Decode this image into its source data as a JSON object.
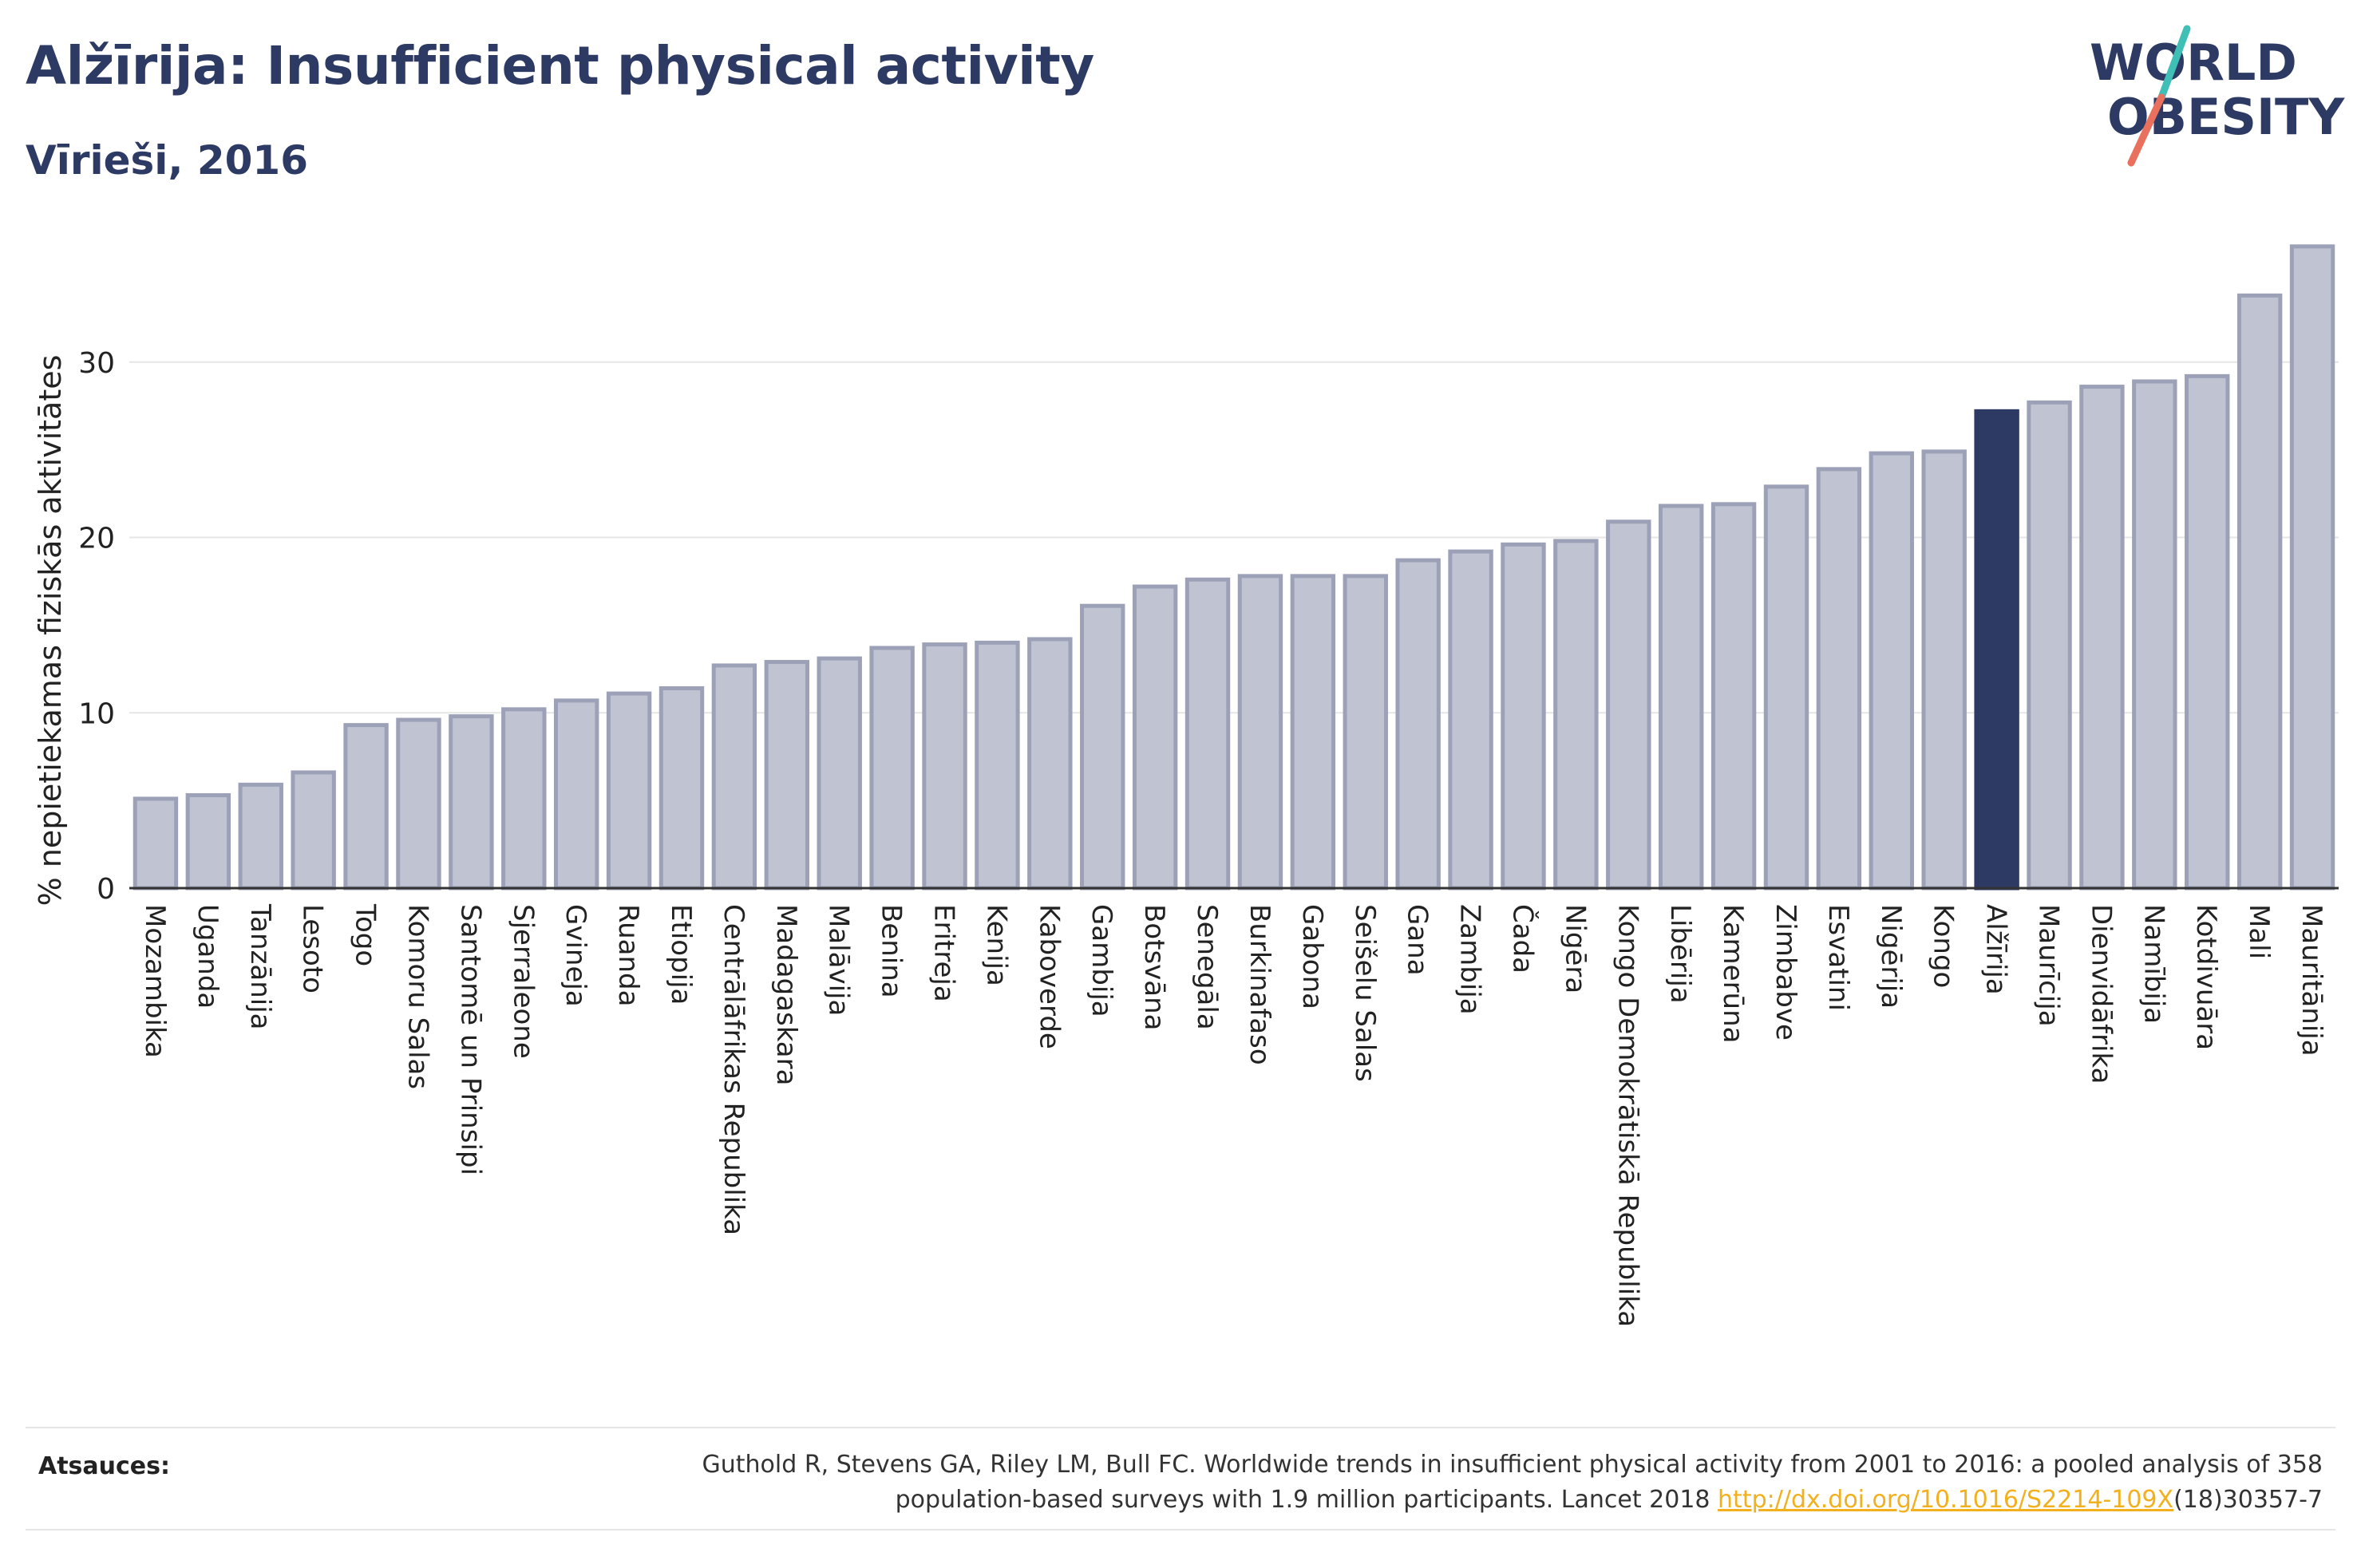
{
  "header": {
    "title": "Alžīrija: Insufficient physical activity",
    "subtitle": "Vīrieši, 2016"
  },
  "logo": {
    "line1": "WORLD",
    "line2": "OBESITY",
    "colors": {
      "text": "#2d3a63",
      "slash_top": "#3fbfb5",
      "slash_bottom": "#e8705d"
    }
  },
  "colors": {
    "bar_fill": "#bfc3d2",
    "bar_stroke": "#9ca1b8",
    "highlight_fill": "#2d3a63",
    "grid": "#e6e6e6",
    "axis": "#333333"
  },
  "chart_data": {
    "type": "bar",
    "ylabel": "% nepietiekamas fiziskās aktivitātes",
    "ylim": [
      0,
      37
    ],
    "yticks": [
      0,
      10,
      20,
      30
    ],
    "grid": true,
    "highlight": "Alžīrija",
    "categories": [
      "Mozambika",
      "Uganda",
      "Tanzānija",
      "Lesoto",
      "Togo",
      "Komoru Salas",
      "Santomē un Prinsipi",
      "Sjerraleone",
      "Gvineja",
      "Ruanda",
      "Etiopija",
      "Centrālāfrikas Republika",
      "Madagaskara",
      "Malāvija",
      "Benina",
      "Eritreja",
      "Kenija",
      "Kaboverde",
      "Gambija",
      "Botsvāna",
      "Senegāla",
      "Burkinafaso",
      "Gabona",
      "Seišelu Salas",
      "Gana",
      "Zambija",
      "Čada",
      "Nigēra",
      "Kongo Demokrātiskā Republika",
      "Libērija",
      "Kamerūna",
      "Zimbabve",
      "Esvatini",
      "Nigērija",
      "Kongo",
      "Alžīrija",
      "Maurīcija",
      "Dienvidāfrika",
      "Namībija",
      "Kotdivuāra",
      "Mali",
      "Mauritānija"
    ],
    "values": [
      5.1,
      5.3,
      5.9,
      6.6,
      9.3,
      9.6,
      9.8,
      10.2,
      10.7,
      11.1,
      11.4,
      12.7,
      12.9,
      13.1,
      13.7,
      13.9,
      14.0,
      14.2,
      16.1,
      17.2,
      17.6,
      17.8,
      17.8,
      17.8,
      18.7,
      19.2,
      19.6,
      19.8,
      20.9,
      21.8,
      21.9,
      22.9,
      23.9,
      24.8,
      24.9,
      27.2,
      27.7,
      28.6,
      28.9,
      29.2,
      33.8,
      36.6
    ]
  },
  "footer": {
    "label": "Atsauces:",
    "text_line1": "Guthold R, Stevens GA, Riley LM, Bull FC. Worldwide trends in insufficient physical activity from 2001 to 2016: a pooled analysis of 358",
    "text_line2_prefix": "population-based surveys with 1.9 million participants. Lancet 2018 ",
    "link": "http://dx.doi.org/10.1016/S2214-109X",
    "text_line2_suffix": "(18)30357-7"
  }
}
